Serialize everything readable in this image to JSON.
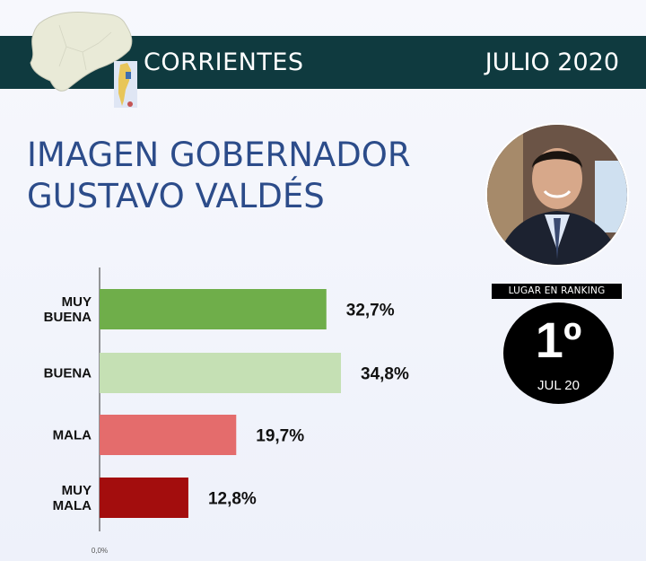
{
  "header": {
    "region": "CORRIENTES",
    "date": "JULIO 2020"
  },
  "title": {
    "line1": "IMAGEN GOBERNADOR",
    "line2": "GUSTAVO VALDÉS"
  },
  "ranking": {
    "label": "LUGAR EN RANKING",
    "position": "1º",
    "period": "JUL 20"
  },
  "colors": {
    "banner": "#0f3a3f",
    "title": "#2c4c8a",
    "muy_buena": "#6fae4a",
    "buena": "#c5e0b4",
    "mala": "#e46c6c",
    "muy_mala": "#a30d0d"
  },
  "chart_data": {
    "type": "bar",
    "orientation": "horizontal",
    "categories": [
      [
        "MUY",
        "BUENA"
      ],
      [
        "BUENA"
      ],
      [
        "MALA"
      ],
      [
        "MUY",
        "MALA"
      ]
    ],
    "values": [
      32.7,
      34.8,
      19.7,
      12.8
    ],
    "value_labels": [
      "32,7%",
      "34,8%",
      "19,7%",
      "12,8%"
    ],
    "bar_colors": [
      "#6fae4a",
      "#c5e0b4",
      "#e46c6c",
      "#a30d0d"
    ],
    "axis_min_label": "0,0%",
    "xlim": [
      0,
      40
    ],
    "grid": false,
    "legend": "none"
  }
}
